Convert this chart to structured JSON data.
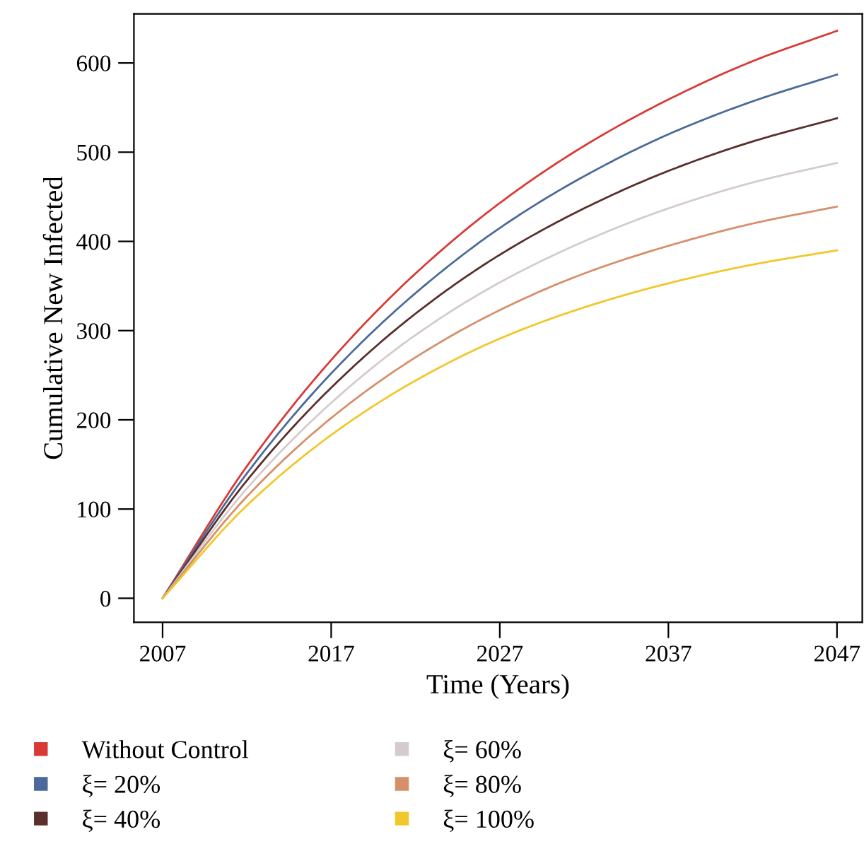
{
  "chart_data": {
    "type": "line",
    "xlabel": "Time (Years)",
    "ylabel": "Cumulative New Infected",
    "x": [
      2007,
      2012,
      2017,
      2022,
      2027,
      2032,
      2037,
      2042,
      2047
    ],
    "series": [
      {
        "name": "Without Control",
        "color": "#d93a36",
        "values": [
          0,
          148,
          267,
          364,
          443,
          507,
          559,
          602,
          636
        ]
      },
      {
        "name": "ξ= 20%",
        "color": "#4a6a99",
        "values": [
          0,
          140,
          252,
          342,
          415,
          473,
          520,
          557,
          587
        ]
      },
      {
        "name": "ξ= 40%",
        "color": "#5a2f2c",
        "values": [
          0,
          132,
          236,
          319,
          385,
          437,
          479,
          512,
          538
        ]
      },
      {
        "name": "ξ= 60%",
        "color": "#d4cccc",
        "values": [
          0,
          123,
          219,
          295,
          354,
          400,
          437,
          466,
          488
        ]
      },
      {
        "name": "ξ= 80%",
        "color": "#d68f6a",
        "values": [
          0,
          114,
          202,
          270,
          323,
          364,
          395,
          420,
          439
        ]
      },
      {
        "name": "ξ= 100%",
        "color": "#f2c72b",
        "values": [
          0,
          104,
          183,
          244,
          291,
          326,
          353,
          374,
          390
        ]
      }
    ],
    "xlim": [
      2005.3,
      2048.5
    ],
    "xticks": [
      2007,
      2017,
      2027,
      2037,
      2047
    ],
    "ylim": [
      -27,
      655
    ],
    "yticks": [
      0,
      100,
      200,
      300,
      400,
      500,
      600
    ],
    "grid": false,
    "legend": "bottom",
    "marker": "none",
    "line_style": "solid"
  }
}
